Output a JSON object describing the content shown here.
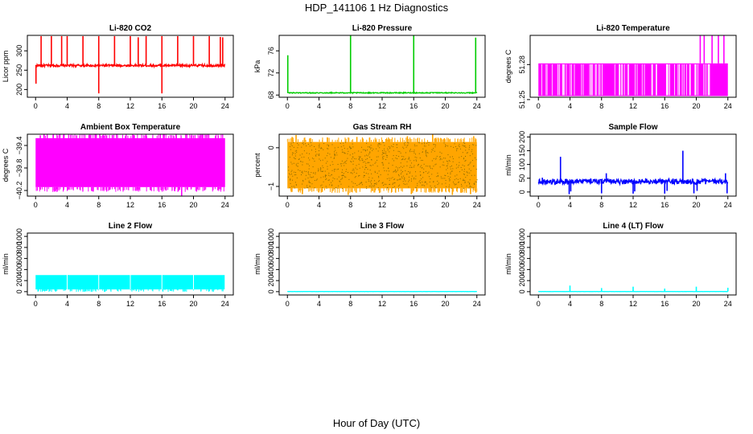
{
  "figure": {
    "title": "HDP_141106  1 Hz Diagnostics",
    "xlabel": "Hour of Day (UTC)"
  },
  "chart_data": [
    {
      "type": "line",
      "title": "Li-820 CO2",
      "ylabel": "Licor ppm",
      "color": "#ff0000",
      "x_ticks": [
        0,
        4,
        8,
        12,
        16,
        20,
        24
      ],
      "y_ticks": [
        200,
        250,
        300
      ],
      "xlim": [
        0,
        24
      ],
      "ylim": [
        180,
        340
      ],
      "baseline": 262,
      "noise": 3,
      "spikes": [
        [
          0.7,
          338
        ],
        [
          2.0,
          338
        ],
        [
          3.3,
          338
        ],
        [
          4.0,
          338
        ],
        [
          6.0,
          338
        ],
        [
          8.0,
          338
        ],
        [
          8.0,
          190
        ],
        [
          10.0,
          338
        ],
        [
          12.0,
          338
        ],
        [
          13.0,
          335
        ],
        [
          14.0,
          338
        ],
        [
          16.0,
          338
        ],
        [
          16.0,
          190
        ],
        [
          18.0,
          338
        ],
        [
          20.0,
          338
        ],
        [
          22.0,
          338
        ],
        [
          23.4,
          336
        ],
        [
          23.7,
          335
        ]
      ],
      "dips": [
        [
          0.05,
          215
        ]
      ]
    },
    {
      "type": "line",
      "title": "Li-820 Pressure",
      "ylabel": "kPa",
      "color": "#00cc00",
      "x_ticks": [
        0,
        4,
        8,
        12,
        16,
        20,
        24
      ],
      "y_ticks": [
        68,
        72,
        76
      ],
      "xlim": [
        0,
        24
      ],
      "ylim": [
        67.6,
        78.8
      ],
      "baseline": 68.4,
      "noise": 0.08,
      "spikes": [
        [
          0.05,
          75.2
        ],
        [
          8.0,
          78.8
        ],
        [
          16.0,
          78.8
        ],
        [
          23.85,
          78.4
        ]
      ],
      "dips": []
    },
    {
      "type": "step",
      "title": "Li-820 Temperature",
      "ylabel": "degrees C",
      "color": "#ff00ff",
      "x_ticks": [
        0,
        4,
        8,
        12,
        16,
        20,
        24
      ],
      "y_ticks": [
        51.25,
        51.28
      ],
      "xlim": [
        0,
        24
      ],
      "ylim": [
        51.252,
        51.305
      ],
      "band": [
        51.253,
        51.281
      ],
      "spikes": [
        [
          20.5,
          51.305
        ],
        [
          21.0,
          51.305
        ],
        [
          22.0,
          51.305
        ],
        [
          22.8,
          51.305
        ],
        [
          23.5,
          51.305
        ]
      ],
      "dips": []
    },
    {
      "type": "band",
      "title": "Ambient Box Temperature",
      "ylabel": "degrees C",
      "color": "#ff00ff",
      "x_ticks": [
        0,
        4,
        8,
        12,
        16,
        20,
        24
      ],
      "y_ticks": [
        -40.2,
        -39.8,
        -39.4
      ],
      "xlim": [
        0,
        24
      ],
      "ylim": [
        -40.3,
        -39.2
      ],
      "band": [
        -40.14,
        -39.27
      ],
      "spikes": [
        [
          0.6,
          -39.22
        ],
        [
          3.6,
          -39.2
        ],
        [
          5.2,
          -39.22
        ],
        [
          9.0,
          -39.22
        ],
        [
          12.5,
          -39.22
        ],
        [
          15.8,
          -39.2
        ],
        [
          20.0,
          -39.22
        ]
      ],
      "dips": [
        [
          7.3,
          -40.22
        ],
        [
          11.1,
          -40.2
        ],
        [
          18.5,
          -40.3
        ],
        [
          21.4,
          -40.2
        ]
      ]
    },
    {
      "type": "band",
      "title": "Gas Stream RH",
      "ylabel": "percent",
      "color": "#ffa500",
      "x_ticks": [
        0,
        4,
        8,
        12,
        16,
        20,
        24
      ],
      "y_ticks": [
        -1.0,
        0.0
      ],
      "xlim": [
        0,
        24
      ],
      "ylim": [
        -1.25,
        0.35
      ],
      "band": [
        -1.05,
        0.15
      ],
      "spikes": [
        [
          0.6,
          0.28
        ],
        [
          1.1,
          0.33
        ],
        [
          8.8,
          0.28
        ],
        [
          15.2,
          0.3
        ],
        [
          18.4,
          0.35
        ],
        [
          23.6,
          0.3
        ]
      ],
      "dips": [
        [
          1.9,
          -1.2
        ],
        [
          7.7,
          -1.22
        ],
        [
          15.7,
          -1.2
        ],
        [
          20.9,
          -1.22
        ],
        [
          23.2,
          -1.2
        ]
      ]
    },
    {
      "type": "line",
      "title": "Sample Flow",
      "ylabel": "ml/min",
      "color": "#0000ff",
      "x_ticks": [
        0,
        4,
        8,
        12,
        16,
        20,
        24
      ],
      "y_ticks": [
        0,
        50,
        100,
        150,
        200
      ],
      "xlim": [
        0,
        24
      ],
      "ylim": [
        -15,
        210
      ],
      "baseline": 38,
      "noise": 10,
      "spikes": [
        [
          2.8,
          128
        ],
        [
          18.3,
          150
        ],
        [
          8.6,
          68
        ],
        [
          0.5,
          52
        ],
        [
          21.1,
          50
        ],
        [
          23.7,
          68
        ]
      ],
      "dips": [
        [
          3.9,
          -8
        ],
        [
          8.0,
          -5
        ],
        [
          12.0,
          -6
        ],
        [
          16.0,
          -6
        ],
        [
          19.7,
          -5
        ],
        [
          23.9,
          -5
        ],
        [
          4.1,
          2
        ],
        [
          12.2,
          2
        ],
        [
          16.3,
          4
        ],
        [
          20.1,
          4
        ]
      ]
    },
    {
      "type": "band",
      "title": "Line 2 Flow",
      "ylabel": "ml/min",
      "color": "#00ffff",
      "x_ticks": [
        0,
        4,
        8,
        12,
        16,
        20,
        24
      ],
      "y_ticks": [
        0,
        200,
        400,
        600,
        800,
        1000
      ],
      "xlim": [
        0,
        24
      ],
      "ylim": [
        -60,
        1060
      ],
      "band": [
        40,
        300
      ],
      "gaps": [
        4.0,
        8.0,
        12.0,
        16.0,
        20.0
      ],
      "spikes": [],
      "dips": []
    },
    {
      "type": "line",
      "title": "Line 3 Flow",
      "ylabel": "ml/min",
      "color": "#00ffff",
      "x_ticks": [
        0,
        4,
        8,
        12,
        16,
        20,
        24
      ],
      "y_ticks": [
        0,
        200,
        400,
        600,
        800,
        1000
      ],
      "xlim": [
        0,
        24
      ],
      "ylim": [
        -60,
        1060
      ],
      "baseline": 2,
      "noise": 1,
      "spikes": [],
      "dips": []
    },
    {
      "type": "line",
      "title": "Line 4 (LT) Flow",
      "ylabel": "ml/min",
      "color": "#00ffff",
      "x_ticks": [
        0,
        4,
        8,
        12,
        16,
        20,
        24
      ],
      "y_ticks": [
        0,
        200,
        400,
        600,
        800,
        1000
      ],
      "xlim": [
        0,
        24
      ],
      "ylim": [
        -60,
        1060
      ],
      "baseline": 2,
      "noise": 1,
      "spikes": [
        [
          4.0,
          110
        ],
        [
          8.0,
          65
        ],
        [
          12.0,
          90
        ],
        [
          16.0,
          55
        ],
        [
          20.0,
          90
        ],
        [
          24.0,
          70
        ]
      ],
      "dips": []
    }
  ]
}
